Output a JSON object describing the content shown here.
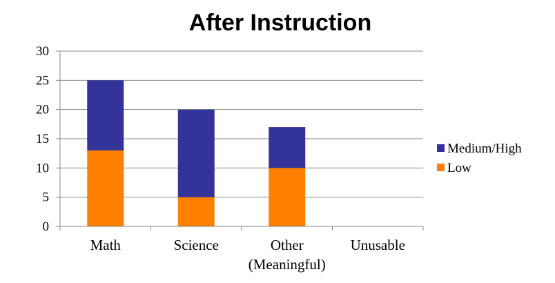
{
  "chart_data": {
    "type": "bar",
    "stacked": true,
    "title": "After Instruction",
    "categories": [
      [
        "Math"
      ],
      [
        "Science"
      ],
      [
        "Other",
        "(Meaningful)"
      ],
      [
        "Unusable"
      ]
    ],
    "series": [
      {
        "name": "Low",
        "color": "#ff8000",
        "values": [
          13,
          5,
          10,
          0
        ]
      },
      {
        "name": "Medium/High",
        "color": "#333399",
        "values": [
          12,
          15,
          7,
          0
        ]
      }
    ],
    "ylim": [
      0,
      30
    ],
    "yticks": [
      0,
      5,
      10,
      15,
      20,
      25,
      30
    ],
    "grid": true,
    "legend_position": "right"
  }
}
